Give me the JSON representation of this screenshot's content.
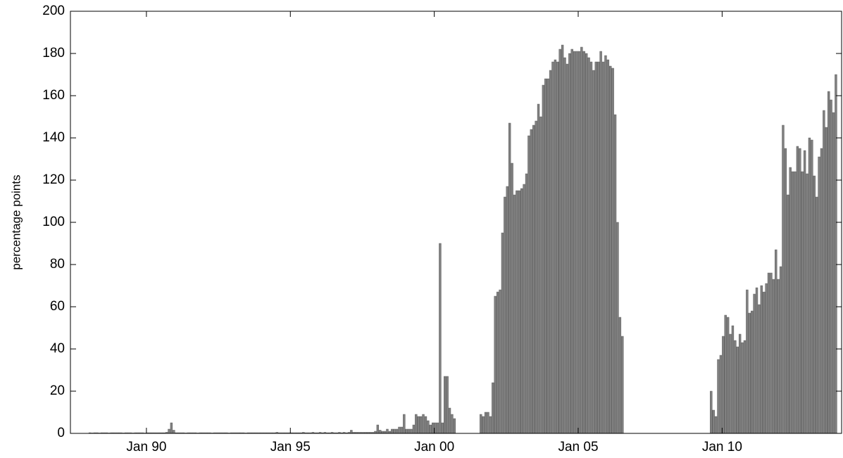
{
  "chart_data": {
    "type": "bar",
    "ylabel": "percentage points",
    "color": "#808080",
    "x": [
      1988,
      1988.083,
      1988.167,
      1988.25,
      1988.333,
      1988.417,
      1988.5,
      1988.583,
      1988.667,
      1988.75,
      1988.833,
      1988.917,
      1989,
      1989.083,
      1989.167,
      1989.25,
      1989.333,
      1989.417,
      1989.5,
      1989.583,
      1989.667,
      1989.75,
      1989.833,
      1989.917,
      1990,
      1990.083,
      1990.167,
      1990.25,
      1990.333,
      1990.417,
      1990.5,
      1990.583,
      1990.667,
      1990.75,
      1990.833,
      1990.917,
      1991,
      1991.083,
      1991.167,
      1991.25,
      1991.333,
      1991.417,
      1991.5,
      1991.583,
      1991.667,
      1991.75,
      1991.833,
      1991.917,
      1992,
      1992.083,
      1992.167,
      1992.25,
      1992.333,
      1992.417,
      1992.5,
      1992.583,
      1992.667,
      1992.75,
      1992.833,
      1992.917,
      1993,
      1993.083,
      1993.167,
      1993.25,
      1993.333,
      1993.417,
      1993.5,
      1993.583,
      1993.667,
      1993.75,
      1993.833,
      1993.917,
      1994,
      1994.083,
      1994.167,
      1994.25,
      1994.333,
      1994.417,
      1994.5,
      1994.583,
      1994.667,
      1994.75,
      1994.833,
      1994.917,
      1995,
      1995.083,
      1995.167,
      1995.25,
      1995.333,
      1995.417,
      1995.5,
      1995.583,
      1995.667,
      1995.75,
      1995.833,
      1995.917,
      1996,
      1996.083,
      1996.167,
      1996.25,
      1996.333,
      1996.417,
      1996.5,
      1996.583,
      1996.667,
      1996.75,
      1996.833,
      1996.917,
      1997,
      1997.083,
      1997.167,
      1997.25,
      1997.333,
      1997.417,
      1997.5,
      1997.583,
      1997.667,
      1997.75,
      1997.833,
      1997.917,
      1998,
      1998.083,
      1998.167,
      1998.25,
      1998.333,
      1998.417,
      1998.5,
      1998.583,
      1998.667,
      1998.75,
      1998.833,
      1998.917,
      1999,
      1999.083,
      1999.167,
      1999.25,
      1999.333,
      1999.417,
      1999.5,
      1999.583,
      1999.667,
      1999.75,
      1999.833,
      1999.917,
      2000,
      2000.083,
      2000.167,
      2000.25,
      2000.333,
      2000.417,
      2000.5,
      2000.583,
      2000.667,
      2000.75,
      2000.833,
      2000.917,
      2001,
      2001.083,
      2001.167,
      2001.25,
      2001.333,
      2001.417,
      2001.5,
      2001.583,
      2001.667,
      2001.75,
      2001.833,
      2001.917,
      2002,
      2002.083,
      2002.167,
      2002.25,
      2002.333,
      2002.417,
      2002.5,
      2002.583,
      2002.667,
      2002.75,
      2002.833,
      2002.917,
      2003,
      2003.083,
      2003.167,
      2003.25,
      2003.333,
      2003.417,
      2003.5,
      2003.583,
      2003.667,
      2003.75,
      2003.833,
      2003.917,
      2004,
      2004.083,
      2004.167,
      2004.25,
      2004.333,
      2004.417,
      2004.5,
      2004.583,
      2004.667,
      2004.75,
      2004.833,
      2004.917,
      2005,
      2005.083,
      2005.167,
      2005.25,
      2005.333,
      2005.417,
      2005.5,
      2005.583,
      2005.667,
      2005.75,
      2005.833,
      2005.917,
      2006,
      2006.083,
      2006.167,
      2006.25,
      2006.333,
      2006.417,
      2006.5,
      2006.583,
      2006.667,
      2006.75,
      2006.833,
      2006.917,
      2007,
      2007.083,
      2007.167,
      2007.25,
      2007.333,
      2007.417,
      2007.5,
      2007.583,
      2007.667,
      2007.75,
      2007.833,
      2007.917,
      2008,
      2008.083,
      2008.167,
      2008.25,
      2008.333,
      2008.417,
      2008.5,
      2008.583,
      2008.667,
      2008.75,
      2008.833,
      2008.917,
      2009,
      2009.083,
      2009.167,
      2009.25,
      2009.333,
      2009.417,
      2009.5,
      2009.583,
      2009.667,
      2009.75,
      2009.833,
      2009.917,
      2010,
      2010.083,
      2010.167,
      2010.25,
      2010.333,
      2010.417,
      2010.5,
      2010.583,
      2010.667,
      2010.75,
      2010.833,
      2010.917,
      2011,
      2011.083,
      2011.167,
      2011.25,
      2011.333,
      2011.417,
      2011.5,
      2011.583,
      2011.667,
      2011.75,
      2011.833,
      2011.917,
      2012,
      2012.083,
      2012.167,
      2012.25,
      2012.333,
      2012.417,
      2012.5,
      2012.583,
      2012.667,
      2012.75,
      2012.833,
      2012.917,
      2013,
      2013.083,
      2013.167,
      2013.25,
      2013.333,
      2013.417,
      2013.5,
      2013.583,
      2013.667,
      2013.75,
      2013.833,
      2013.917
    ],
    "values": [
      0.3,
      0.2,
      0.3,
      0.3,
      0.2,
      0.3,
      0.3,
      0.3,
      0.2,
      0.3,
      0.3,
      0.3,
      0.3,
      0.3,
      0.2,
      0.3,
      0.3,
      0.3,
      0.2,
      0.3,
      0.3,
      0.3,
      0.3,
      0.2,
      0.3,
      0.3,
      0.3,
      0.3,
      0.3,
      0.3,
      0.3,
      0.3,
      0.5,
      2,
      5,
      1.5,
      0.3,
      0.3,
      0.3,
      0.3,
      0.2,
      0.3,
      0.3,
      0.3,
      0.3,
      0.2,
      0.3,
      0.3,
      0.3,
      0.3,
      0.3,
      0.2,
      0.3,
      0.3,
      0.3,
      0.3,
      0.3,
      0.3,
      0.2,
      0.3,
      0.3,
      0.3,
      0.3,
      0.3,
      0.3,
      0.2,
      0.3,
      0.3,
      0.3,
      0.3,
      0.3,
      0.3,
      0.3,
      0.3,
      0.3,
      0.3,
      0.3,
      0.3,
      0.5,
      0.3,
      0.3,
      0.3,
      0.3,
      0.3,
      0.3,
      0.3,
      0.3,
      0.3,
      0.3,
      0.5,
      0.3,
      0.3,
      0.3,
      0.5,
      0.3,
      0.3,
      0.5,
      0.3,
      0.5,
      0.3,
      0.3,
      0.5,
      0.3,
      0.3,
      0.5,
      0.3,
      0.5,
      0.3,
      0.5,
      1.5,
      0.5,
      0.5,
      0.5,
      0.5,
      0.5,
      0.5,
      0.5,
      0.5,
      0.5,
      1,
      4,
      1.5,
      1,
      1,
      2,
      1,
      2,
      2,
      2,
      3,
      3,
      9,
      2,
      2,
      2,
      4,
      9,
      8,
      8,
      9,
      8,
      6,
      4,
      5,
      5,
      5,
      90,
      5,
      27,
      27,
      12,
      9,
      7,
      null,
      null,
      null,
      null,
      null,
      null,
      null,
      null,
      null,
      null,
      9,
      8,
      10,
      10,
      8,
      24,
      65,
      67,
      68,
      95,
      112,
      117,
      147,
      128,
      113,
      115,
      115,
      116,
      118,
      123,
      141,
      144,
      146,
      148,
      156,
      150,
      165,
      168,
      168,
      172,
      176,
      177,
      176,
      182,
      184,
      178,
      175,
      180,
      182,
      181,
      181,
      181,
      183,
      181,
      180,
      178,
      176,
      172,
      176,
      176,
      181,
      176,
      179,
      177,
      174,
      173,
      151,
      100,
      55,
      46,
      null,
      null,
      null,
      null,
      null,
      null,
      null,
      null,
      null,
      null,
      null,
      null,
      null,
      null,
      null,
      null,
      null,
      null,
      null,
      null,
      null,
      null,
      null,
      null,
      null,
      null,
      null,
      null,
      null,
      null,
      null,
      null,
      null,
      null,
      null,
      null,
      20,
      11,
      8,
      35,
      37,
      46,
      56,
      55,
      47,
      51,
      44,
      41,
      47,
      43,
      44,
      68,
      57,
      58,
      66,
      69,
      61,
      70,
      67,
      71,
      76,
      76,
      73,
      87,
      73,
      79,
      146,
      135,
      113,
      126,
      124,
      124,
      136,
      135,
      124,
      134,
      123,
      140,
      139,
      122,
      112,
      131,
      135,
      153,
      145,
      162,
      158,
      152,
      170
    ],
    "xlim": [
      1987.36,
      2014.15
    ],
    "xticks": [
      {
        "value": 1990,
        "label": "Jan 90"
      },
      {
        "value": 1995,
        "label": "Jan 95"
      },
      {
        "value": 2000,
        "label": "Jan 00"
      },
      {
        "value": 2005,
        "label": "Jan 05"
      },
      {
        "value": 2010,
        "label": "Jan 10"
      }
    ],
    "ylim": [
      0,
      200
    ],
    "yticks": [
      0,
      20,
      40,
      60,
      80,
      100,
      120,
      140,
      160,
      180,
      200
    ]
  }
}
